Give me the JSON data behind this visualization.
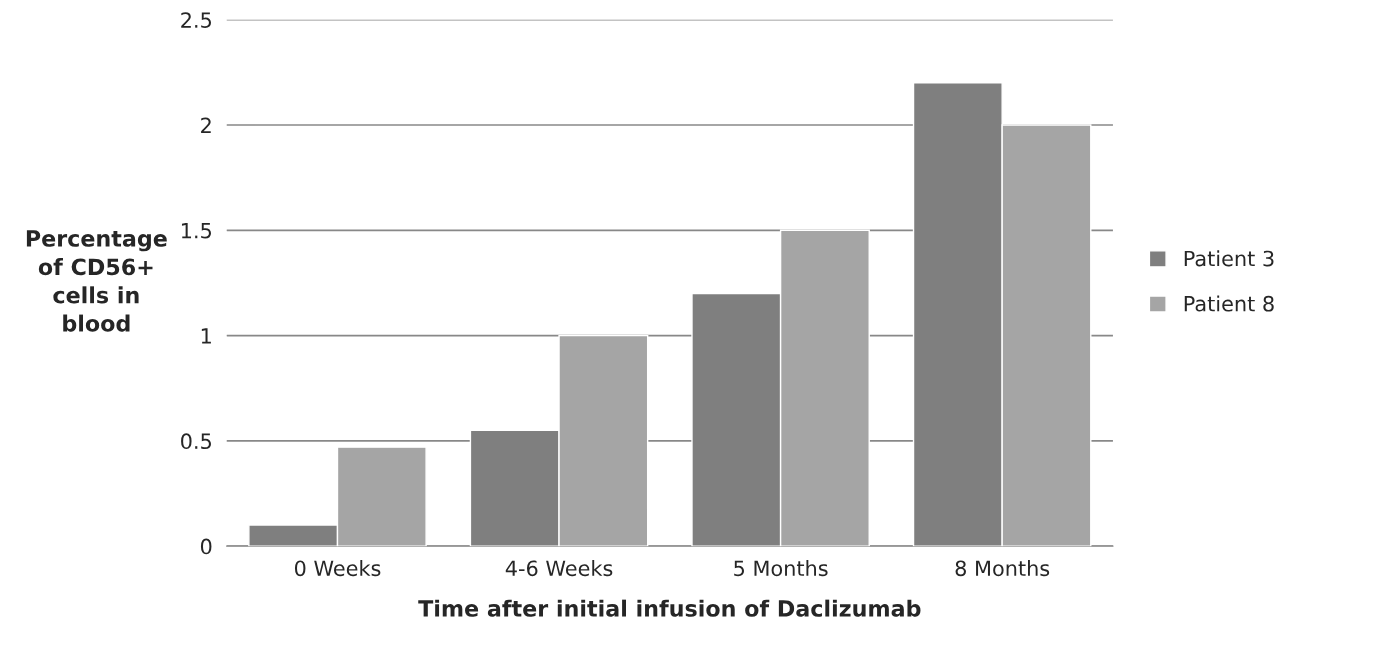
{
  "chart_data": {
    "type": "bar",
    "categories": [
      "0 Weeks",
      "4-6 Weeks",
      "5 Months",
      "8 Months"
    ],
    "series": [
      {
        "name": "Patient 3",
        "color": "#7f7f7f",
        "values": [
          0.1,
          0.55,
          1.2,
          2.2
        ]
      },
      {
        "name": "Patient 8",
        "color": "#a5a5a5",
        "values": [
          0.47,
          1.0,
          1.5,
          2.0
        ]
      }
    ],
    "xlabel": "Time after initial infusion of Daclizumab",
    "ylabel": "Percentage\nof CD56+\ncells in\nblood",
    "ylim": [
      0,
      2.5
    ],
    "yticks": [
      0,
      0.5,
      1,
      1.5,
      2,
      2.5
    ],
    "grid": "y",
    "legend": "right"
  }
}
